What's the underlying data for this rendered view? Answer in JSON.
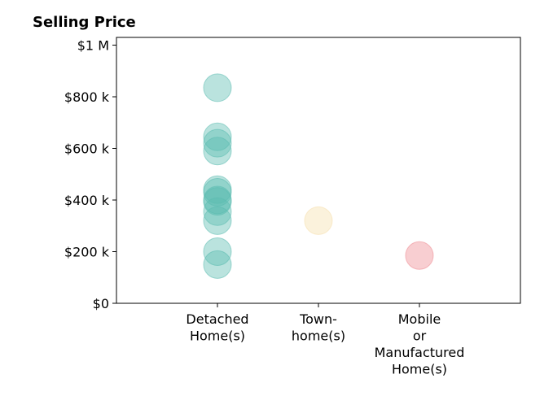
{
  "chart_data": {
    "type": "scatter",
    "title": "Selling Price",
    "xlabel": "",
    "ylabel": "",
    "categories": [
      {
        "label_lines": [
          "Detached",
          "Home(s)"
        ],
        "color": "#5bbcb0"
      },
      {
        "label_lines": [
          "Town-",
          "home(s)"
        ],
        "color": "#f5dfac"
      },
      {
        "label_lines": [
          "Mobile",
          "or",
          "Manufactured",
          "Home(s)"
        ],
        "color": "#ee8a92"
      }
    ],
    "series": [
      {
        "category_index": 0,
        "values": [
          835000,
          645000,
          620000,
          590000,
          440000,
          430000,
          400000,
          395000,
          355000,
          320000,
          200000,
          150000
        ]
      },
      {
        "category_index": 1,
        "values": [
          320000
        ]
      },
      {
        "category_index": 2,
        "values": [
          185000
        ]
      }
    ],
    "ylim": [
      0,
      1030000
    ],
    "xlim": [
      0,
      4
    ],
    "yticks": [
      {
        "value": 0,
        "label": "$0"
      },
      {
        "value": 200000,
        "label": "$200 k"
      },
      {
        "value": 400000,
        "label": "$400 k"
      },
      {
        "value": 600000,
        "label": "$600 k"
      },
      {
        "value": 800000,
        "label": "$800 k"
      },
      {
        "value": 1000000,
        "label": "$1 M"
      }
    ],
    "grid": false,
    "legend": "none"
  }
}
